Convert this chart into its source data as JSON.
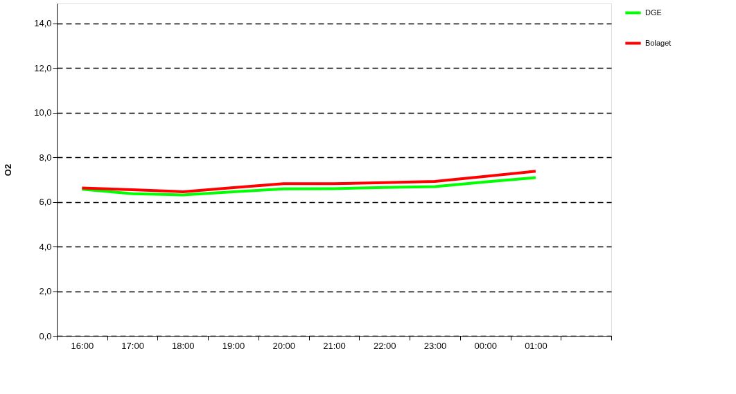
{
  "chart_data": {
    "type": "line",
    "ylabel": "O2",
    "categories": [
      "16:00",
      "17:00",
      "18:00",
      "19:00",
      "20:00",
      "21:00",
      "22:00",
      "23:00",
      "00:00",
      "01:00",
      null
    ],
    "series": [
      {
        "name": "DGE",
        "color": "#00ff00",
        "values": [
          6.57,
          6.37,
          6.32,
          6.46,
          6.59,
          6.6,
          6.65,
          6.69,
          6.9,
          7.09,
          null
        ]
      },
      {
        "name": "Bolaget",
        "color": "#ff0000",
        "values": [
          6.63,
          6.55,
          6.46,
          6.64,
          6.82,
          6.82,
          6.87,
          6.92,
          7.15,
          7.38,
          null
        ]
      }
    ],
    "ylim": [
      0,
      14.9
    ],
    "yticks": [
      {
        "value": 0,
        "label": "0,0"
      },
      {
        "value": 2,
        "label": "2,0"
      },
      {
        "value": 4,
        "label": "4,0"
      },
      {
        "value": 6,
        "label": "6,0"
      },
      {
        "value": 8,
        "label": "8,0"
      },
      {
        "value": 10,
        "label": "10,0"
      },
      {
        "value": 12,
        "label": "12,0"
      },
      {
        "value": 14,
        "label": "14,0"
      }
    ],
    "grid": "y",
    "legend": "right",
    "marker": "none",
    "line_style": "solid"
  }
}
